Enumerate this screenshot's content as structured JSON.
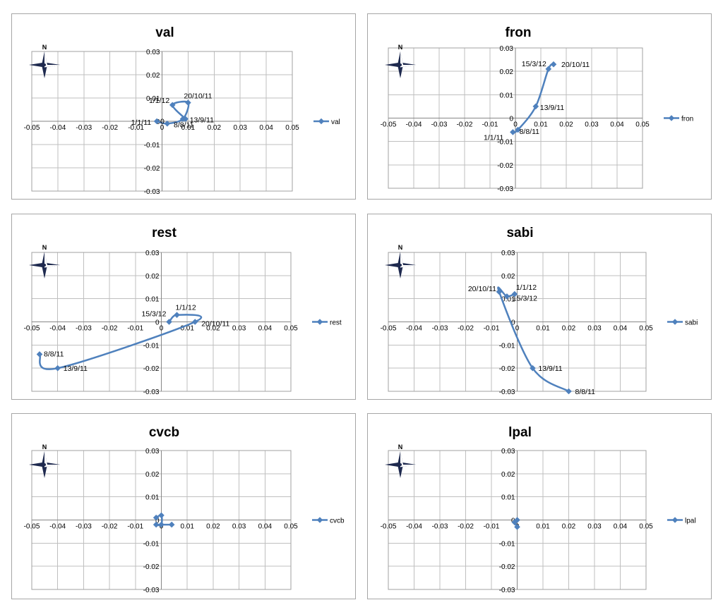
{
  "chart_data": [
    {
      "type": "line",
      "title": "val",
      "legend": "right",
      "legend_label": "val",
      "grid": true,
      "xlim": [
        -0.05,
        0.05
      ],
      "ylim": [
        -0.03,
        0.03
      ],
      "x_ticks": [
        "-0.05",
        "-0.04",
        "-0.03",
        "-0.02",
        "-0.01",
        "0",
        "0.01",
        "0.02",
        "0.03",
        "0.04",
        "0.05"
      ],
      "y_ticks": [
        "0.03",
        "0.02",
        "0.01",
        "0",
        "-0.01",
        "-0.02",
        "-0.03"
      ],
      "compass": "N",
      "series": [
        {
          "name": "val",
          "points": [
            {
              "x": -0.002,
              "y": 0.0,
              "label": "1/1/11"
            },
            {
              "x": 0.002,
              "y": -0.001,
              "label": "0"
            },
            {
              "x": 0.008,
              "y": 0.001,
              "label": "8/8/11"
            },
            {
              "x": 0.01,
              "y": 0.008,
              "label": "20/10/11"
            },
            {
              "x": 0.004,
              "y": 0.007,
              "label": "1/1/12"
            },
            {
              "x": 0.009,
              "y": 0.001,
              "label": "13/9/11"
            }
          ]
        }
      ]
    },
    {
      "type": "line",
      "title": "fron",
      "legend": "right",
      "legend_label": "fron",
      "grid": true,
      "xlim": [
        -0.05,
        0.05
      ],
      "ylim": [
        -0.03,
        0.03
      ],
      "x_ticks": [
        "-0.05",
        "-0.04",
        "-0.03",
        "-0.02",
        "-0.01",
        "0",
        "0.01",
        "0.02",
        "0.03",
        "0.04",
        "0.05"
      ],
      "y_ticks": [
        "0.03",
        "0.02",
        "0.01",
        "0",
        "-0.01",
        "-0.02",
        "-0.03"
      ],
      "compass": "N",
      "series": [
        {
          "name": "fron",
          "points": [
            {
              "x": -0.001,
              "y": -0.006,
              "label": "1/1/11"
            },
            {
              "x": 0.001,
              "y": -0.005,
              "label": "8/8/11"
            },
            {
              "x": 0.008,
              "y": 0.005,
              "label": "13/9/11"
            },
            {
              "x": 0.013,
              "y": 0.021,
              "label": "15/3/12"
            },
            {
              "x": 0.015,
              "y": 0.023,
              "label": "20/10/11"
            }
          ]
        }
      ]
    },
    {
      "type": "line",
      "title": "rest",
      "legend": "right",
      "legend_label": "rest",
      "grid": true,
      "xlim": [
        -0.05,
        0.05
      ],
      "ylim": [
        -0.03,
        0.03
      ],
      "x_ticks": [
        "-0.05",
        "-0.04",
        "-0.03",
        "-0.02",
        "-0.01",
        "0",
        "0.01",
        "0.02",
        "0.03",
        "0.04",
        "0.05"
      ],
      "y_ticks": [
        "0.03",
        "0.02",
        "0.01",
        "0",
        "-0.01",
        "-0.02",
        "-0.03"
      ],
      "compass": "N",
      "series": [
        {
          "name": "rest",
          "points": [
            {
              "x": -0.047,
              "y": -0.014,
              "label": "8/8/11"
            },
            {
              "x": -0.04,
              "y": -0.02,
              "label": "13/9/11"
            },
            {
              "x": 0.013,
              "y": 0.0,
              "label": "20/10/11"
            },
            {
              "x": 0.006,
              "y": 0.003,
              "label": "1/1/12"
            },
            {
              "x": 0.003,
              "y": 0.0,
              "label": "15/3/12"
            }
          ]
        }
      ]
    },
    {
      "type": "line",
      "title": "sabi",
      "legend": "right",
      "legend_label": "sabi",
      "grid": true,
      "xlim": [
        -0.05,
        0.05
      ],
      "ylim": [
        -0.03,
        0.03
      ],
      "x_ticks": [
        "-0.05",
        "-0.04",
        "-0.03",
        "-0.02",
        "-0.01",
        "0",
        "0.01",
        "0.02",
        "0.03",
        "0.04",
        "0.05"
      ],
      "y_ticks": [
        "0.03",
        "0.02",
        "0.01",
        "0",
        "-0.01",
        "-0.02",
        "-0.03"
      ],
      "compass": "N",
      "series": [
        {
          "name": "sabi",
          "points": [
            {
              "x": 0.02,
              "y": -0.03,
              "label": "8/8/11"
            },
            {
              "x": 0.006,
              "y": -0.02,
              "label": "13/9/11"
            },
            {
              "x": -0.007,
              "y": 0.013,
              "label": "20/10/11"
            },
            {
              "x": -0.004,
              "y": 0.011,
              "label": "15/3/12"
            },
            {
              "x": -0.001,
              "y": 0.012,
              "label": "1/1/12"
            }
          ]
        }
      ]
    },
    {
      "type": "line",
      "title": "cvcb",
      "legend": "right",
      "legend_label": "cvcb",
      "grid": true,
      "xlim": [
        -0.05,
        0.05
      ],
      "ylim": [
        -0.03,
        0.03
      ],
      "x_ticks": [
        "-0.05",
        "-0.04",
        "-0.03",
        "-0.02",
        "-0.01",
        "0",
        "0.01",
        "0.02",
        "0.03",
        "0.04",
        "0.05"
      ],
      "y_ticks": [
        "0.03",
        "0.02",
        "0.01",
        "0",
        "-0.01",
        "-0.02",
        "-0.03"
      ],
      "compass": "N",
      "series": [
        {
          "name": "cvcb",
          "points": [
            {
              "x": -0.002,
              "y": 0.001,
              "label": ""
            },
            {
              "x": 0.0,
              "y": 0.002,
              "label": ""
            },
            {
              "x": 0.0,
              "y": -0.002,
              "label": ""
            },
            {
              "x": -0.002,
              "y": -0.002,
              "label": ""
            },
            {
              "x": 0.004,
              "y": -0.002,
              "label": ""
            }
          ]
        }
      ]
    },
    {
      "type": "line",
      "title": "lpal",
      "legend": "right",
      "legend_label": "lpal",
      "grid": true,
      "xlim": [
        -0.05,
        0.05
      ],
      "ylim": [
        -0.03,
        0.03
      ],
      "x_ticks": [
        "-0.05",
        "-0.04",
        "-0.03",
        "-0.02",
        "-0.01",
        "0",
        "0.01",
        "0.02",
        "0.03",
        "0.04",
        "0.05"
      ],
      "y_ticks": [
        "0.03",
        "0.02",
        "0.01",
        "0",
        "-0.01",
        "-0.02",
        "-0.03"
      ],
      "compass": "N",
      "series": [
        {
          "name": "lpal",
          "points": [
            {
              "x": 0.0,
              "y": 0.0,
              "label": ""
            },
            {
              "x": -0.001,
              "y": -0.001,
              "label": ""
            },
            {
              "x": 0.0,
              "y": -0.003,
              "label": ""
            }
          ]
        }
      ]
    }
  ]
}
